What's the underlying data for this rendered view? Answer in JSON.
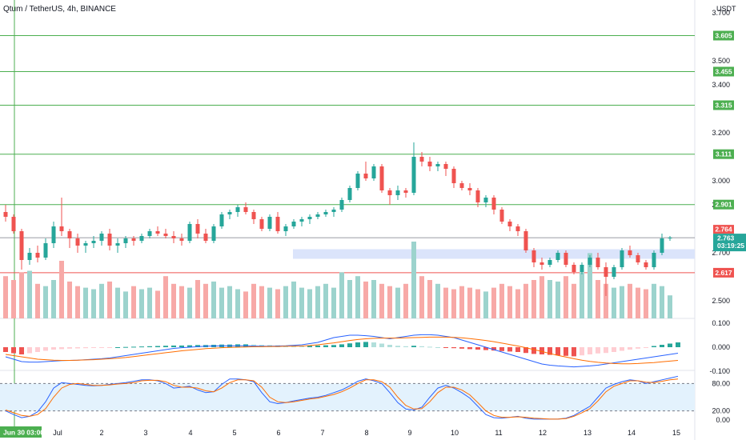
{
  "header": {
    "title": "Qtum / TetherUS, 4h, BINANCE",
    "currency": "USDT"
  },
  "colors": {
    "up": "#26a69a",
    "down": "#ef5350",
    "volUp": "#9cd3cd",
    "volDown": "#f7a9a7",
    "support": "#4caf50",
    "resistance": "#ef5350",
    "zone": "#dbe4fb",
    "macd": "#2962ff",
    "signal": "#ff6d00",
    "stochK": "#2962ff",
    "stochD": "#ff6d00",
    "stochBand": "#e3f2fd"
  },
  "chart_data": {
    "type": "candlestick",
    "title": "Qtum / TetherUS, 4h, BINANCE",
    "y_axis": {
      "unit": "USDT",
      "ticks": [
        "3.700",
        "3.500",
        "3.400",
        "3.200",
        "3.000",
        "2.900",
        "2.700",
        "2.500"
      ],
      "range": [
        2.45,
        3.78
      ]
    },
    "x_axis": {
      "labels": [
        "Jun 30  03:00",
        "Jul",
        "2",
        "3",
        "4",
        "5",
        "6",
        "7",
        "8",
        "9",
        "10",
        "11",
        "12",
        "13",
        "14",
        "15"
      ]
    },
    "horizontal_levels": [
      {
        "price": 3.605,
        "label": "3.605",
        "color": "#4caf50"
      },
      {
        "price": 3.455,
        "label": "3.455",
        "color": "#4caf50"
      },
      {
        "price": 3.315,
        "label": "3.315",
        "color": "#4caf50"
      },
      {
        "price": 3.111,
        "label": "3.111",
        "color": "#4caf50"
      },
      {
        "price": 2.901,
        "label": "2.901",
        "color": "#4caf50"
      },
      {
        "price": 2.617,
        "label": "2.617",
        "color": "#ef5350"
      }
    ],
    "current_price": {
      "value": 2.763,
      "label": "2.763",
      "countdown": "03:19:25",
      "last_label": "2.764"
    },
    "zone": {
      "low": 2.675,
      "high": 2.715
    },
    "candles": [
      [
        2.87,
        2.9,
        2.83,
        2.85
      ],
      [
        2.85,
        2.86,
        2.78,
        2.79
      ],
      [
        2.79,
        2.8,
        2.63,
        2.67
      ],
      [
        2.67,
        2.72,
        2.65,
        2.7
      ],
      [
        2.7,
        2.73,
        2.66,
        2.68
      ],
      [
        2.68,
        2.76,
        2.67,
        2.74
      ],
      [
        2.74,
        2.83,
        2.72,
        2.81
      ],
      [
        2.81,
        2.93,
        2.77,
        2.79
      ],
      [
        2.79,
        2.8,
        2.72,
        2.76
      ],
      [
        2.76,
        2.78,
        2.7,
        2.73
      ],
      [
        2.73,
        2.75,
        2.7,
        2.74
      ],
      [
        2.74,
        2.77,
        2.72,
        2.75
      ],
      [
        2.75,
        2.79,
        2.73,
        2.78
      ],
      [
        2.78,
        2.8,
        2.71,
        2.73
      ],
      [
        2.73,
        2.76,
        2.7,
        2.74
      ],
      [
        2.74,
        2.77,
        2.72,
        2.76
      ],
      [
        2.76,
        2.77,
        2.73,
        2.75
      ],
      [
        2.75,
        2.78,
        2.74,
        2.77
      ],
      [
        2.77,
        2.8,
        2.76,
        2.79
      ],
      [
        2.79,
        2.81,
        2.77,
        2.78
      ],
      [
        2.78,
        2.8,
        2.76,
        2.77
      ],
      [
        2.77,
        2.79,
        2.74,
        2.76
      ],
      [
        2.76,
        2.78,
        2.73,
        2.75
      ],
      [
        2.75,
        2.83,
        2.74,
        2.82
      ],
      [
        2.82,
        2.84,
        2.76,
        2.78
      ],
      [
        2.78,
        2.8,
        2.74,
        2.75
      ],
      [
        2.75,
        2.82,
        2.74,
        2.81
      ],
      [
        2.81,
        2.87,
        2.8,
        2.86
      ],
      [
        2.86,
        2.88,
        2.84,
        2.87
      ],
      [
        2.87,
        2.9,
        2.85,
        2.89
      ],
      [
        2.89,
        2.91,
        2.86,
        2.87
      ],
      [
        2.87,
        2.88,
        2.82,
        2.84
      ],
      [
        2.84,
        2.85,
        2.79,
        2.8
      ],
      [
        2.8,
        2.86,
        2.79,
        2.85
      ],
      [
        2.85,
        2.87,
        2.78,
        2.79
      ],
      [
        2.79,
        2.82,
        2.77,
        2.81
      ],
      [
        2.81,
        2.84,
        2.8,
        2.83
      ],
      [
        2.83,
        2.85,
        2.81,
        2.84
      ],
      [
        2.84,
        2.86,
        2.82,
        2.85
      ],
      [
        2.85,
        2.87,
        2.84,
        2.86
      ],
      [
        2.86,
        2.88,
        2.85,
        2.87
      ],
      [
        2.87,
        2.89,
        2.85,
        2.88
      ],
      [
        2.88,
        2.93,
        2.87,
        2.92
      ],
      [
        2.92,
        2.98,
        2.91,
        2.97
      ],
      [
        2.97,
        3.04,
        2.96,
        3.03
      ],
      [
        3.03,
        3.08,
        3.0,
        3.01
      ],
      [
        3.01,
        3.07,
        3.0,
        3.06
      ],
      [
        3.06,
        3.07,
        2.95,
        2.96
      ],
      [
        2.96,
        2.97,
        2.9,
        2.94
      ],
      [
        2.94,
        2.98,
        2.92,
        2.96
      ],
      [
        2.96,
        2.97,
        2.93,
        2.95
      ],
      [
        2.95,
        3.16,
        2.94,
        3.1
      ],
      [
        3.1,
        3.12,
        3.06,
        3.08
      ],
      [
        3.08,
        3.1,
        3.04,
        3.06
      ],
      [
        3.06,
        3.08,
        3.04,
        3.07
      ],
      [
        3.07,
        3.08,
        3.02,
        3.05
      ],
      [
        3.05,
        3.06,
        2.97,
        2.99
      ],
      [
        2.99,
        3.0,
        2.96,
        2.97
      ],
      [
        2.97,
        2.99,
        2.94,
        2.96
      ],
      [
        2.96,
        2.97,
        2.89,
        2.91
      ],
      [
        2.91,
        2.94,
        2.89,
        2.93
      ],
      [
        2.93,
        2.94,
        2.86,
        2.88
      ],
      [
        2.88,
        2.89,
        2.82,
        2.83
      ],
      [
        2.83,
        2.84,
        2.79,
        2.81
      ],
      [
        2.81,
        2.82,
        2.77,
        2.79
      ],
      [
        2.79,
        2.8,
        2.7,
        2.71
      ],
      [
        2.71,
        2.72,
        2.64,
        2.66
      ],
      [
        2.66,
        2.68,
        2.63,
        2.65
      ],
      [
        2.65,
        2.68,
        2.64,
        2.67
      ],
      [
        2.67,
        2.71,
        2.66,
        2.7
      ],
      [
        2.7,
        2.71,
        2.64,
        2.65
      ],
      [
        2.65,
        2.66,
        2.61,
        2.62
      ],
      [
        2.62,
        2.66,
        2.61,
        2.65
      ],
      [
        2.65,
        2.69,
        2.64,
        2.68
      ],
      [
        2.68,
        2.7,
        2.63,
        2.64
      ],
      [
        2.64,
        2.66,
        2.52,
        2.6
      ],
      [
        2.6,
        2.65,
        2.59,
        2.64
      ],
      [
        2.64,
        2.72,
        2.63,
        2.71
      ],
      [
        2.71,
        2.73,
        2.68,
        2.69
      ],
      [
        2.69,
        2.7,
        2.65,
        2.66
      ],
      [
        2.66,
        2.67,
        2.63,
        2.64
      ],
      [
        2.64,
        2.71,
        2.63,
        2.7
      ],
      [
        2.7,
        2.78,
        2.69,
        2.76
      ],
      [
        2.76,
        2.77,
        2.75,
        2.763
      ]
    ],
    "volume": [
      0.55,
      0.5,
      0.6,
      0.62,
      0.45,
      0.42,
      0.5,
      0.75,
      0.48,
      0.42,
      0.4,
      0.38,
      0.45,
      0.48,
      0.4,
      0.35,
      0.42,
      0.38,
      0.4,
      0.36,
      0.55,
      0.45,
      0.42,
      0.4,
      0.5,
      0.45,
      0.48,
      0.4,
      0.42,
      0.38,
      0.35,
      0.45,
      0.42,
      0.4,
      0.38,
      0.42,
      0.48,
      0.4,
      0.38,
      0.42,
      0.45,
      0.4,
      0.6,
      0.5,
      0.55,
      0.48,
      0.5,
      0.45,
      0.42,
      0.4,
      0.45,
      1.0,
      0.55,
      0.5,
      0.45,
      0.4,
      0.38,
      0.42,
      0.4,
      0.38,
      0.35,
      0.4,
      0.45,
      0.42,
      0.38,
      0.45,
      0.5,
      0.55,
      0.5,
      0.48,
      0.55,
      0.45,
      0.6,
      0.85,
      0.5,
      0.45,
      0.4,
      0.42,
      0.45,
      0.4,
      0.38,
      0.45,
      0.42,
      0.3,
      0.12
    ],
    "macd_panel": {
      "ticks": [
        "0.100",
        "0.000",
        "-0.100"
      ],
      "range": [
        -0.11,
        0.11
      ],
      "histogram": [
        -0.02,
        -0.025,
        -0.03,
        -0.025,
        -0.02,
        -0.015,
        -0.01,
        -0.008,
        -0.006,
        -0.005,
        -0.004,
        -0.003,
        -0.002,
        -0.001,
        0.0,
        0.001,
        0.002,
        0.003,
        0.004,
        0.005,
        0.006,
        0.007,
        0.007,
        0.008,
        0.009,
        0.009,
        0.01,
        0.011,
        0.011,
        0.012,
        0.012,
        0.011,
        0.01,
        0.009,
        0.008,
        0.007,
        0.006,
        0.005,
        0.006,
        0.007,
        0.008,
        0.009,
        0.012,
        0.016,
        0.02,
        0.022,
        0.02,
        0.015,
        0.01,
        0.006,
        0.004,
        0.006,
        0.004,
        0.002,
        0.0,
        -0.002,
        -0.004,
        -0.006,
        -0.008,
        -0.01,
        -0.012,
        -0.014,
        -0.016,
        -0.018,
        -0.02,
        -0.024,
        -0.028,
        -0.03,
        -0.032,
        -0.034,
        -0.036,
        -0.038,
        -0.034,
        -0.03,
        -0.026,
        -0.024,
        -0.02,
        -0.015,
        -0.01,
        -0.006,
        -0.002,
        0.005,
        0.01,
        0.015,
        0.02
      ],
      "macd": [
        -0.04,
        -0.05,
        -0.06,
        -0.062,
        -0.062,
        -0.06,
        -0.058,
        -0.056,
        -0.055,
        -0.054,
        -0.052,
        -0.05,
        -0.048,
        -0.045,
        -0.04,
        -0.035,
        -0.03,
        -0.025,
        -0.02,
        -0.015,
        -0.01,
        -0.005,
        -0.002,
        0.0,
        0.002,
        0.004,
        0.005,
        0.006,
        0.006,
        0.006,
        0.006,
        0.005,
        0.004,
        0.004,
        0.005,
        0.006,
        0.008,
        0.01,
        0.015,
        0.02,
        0.03,
        0.04,
        0.045,
        0.05,
        0.05,
        0.048,
        0.045,
        0.04,
        0.035,
        0.04,
        0.045,
        0.05,
        0.052,
        0.052,
        0.05,
        0.045,
        0.04,
        0.03,
        0.02,
        0.01,
        0.0,
        -0.01,
        -0.02,
        -0.03,
        -0.04,
        -0.05,
        -0.06,
        -0.07,
        -0.075,
        -0.078,
        -0.08,
        -0.082,
        -0.08,
        -0.078,
        -0.075,
        -0.07,
        -0.065,
        -0.06,
        -0.055,
        -0.05,
        -0.045,
        -0.04,
        -0.035,
        -0.03,
        -0.025
      ],
      "signal": [
        -0.03,
        -0.035,
        -0.04,
        -0.045,
        -0.05,
        -0.052,
        -0.054,
        -0.055,
        -0.055,
        -0.054,
        -0.053,
        -0.052,
        -0.05,
        -0.048,
        -0.046,
        -0.043,
        -0.039,
        -0.035,
        -0.031,
        -0.027,
        -0.023,
        -0.019,
        -0.015,
        -0.012,
        -0.009,
        -0.006,
        -0.004,
        -0.002,
        -0.001,
        0.0,
        0.001,
        0.002,
        0.002,
        0.003,
        0.003,
        0.004,
        0.004,
        0.005,
        0.007,
        0.01,
        0.014,
        0.018,
        0.023,
        0.028,
        0.032,
        0.035,
        0.037,
        0.038,
        0.038,
        0.038,
        0.039,
        0.04,
        0.041,
        0.042,
        0.042,
        0.042,
        0.041,
        0.039,
        0.036,
        0.032,
        0.028,
        0.023,
        0.017,
        0.011,
        0.005,
        -0.002,
        -0.01,
        -0.018,
        -0.026,
        -0.034,
        -0.041,
        -0.048,
        -0.054,
        -0.059,
        -0.063,
        -0.066,
        -0.068,
        -0.069,
        -0.069,
        -0.068,
        -0.066,
        -0.064,
        -0.061,
        -0.058,
        -0.055
      ]
    },
    "stoch_panel": {
      "ticks": [
        "80.00",
        "20.00",
        "0.00"
      ],
      "band": [
        20,
        80
      ],
      "k": [
        20,
        12,
        5,
        8,
        18,
        40,
        70,
        82,
        80,
        78,
        76,
        75,
        76,
        78,
        80,
        82,
        85,
        88,
        88,
        86,
        80,
        70,
        72,
        74,
        66,
        60,
        62,
        78,
        90,
        90,
        88,
        84,
        60,
        40,
        36,
        38,
        42,
        45,
        48,
        50,
        54,
        60,
        66,
        75,
        85,
        90,
        86,
        80,
        60,
        38,
        24,
        22,
        28,
        50,
        70,
        76,
        70,
        60,
        48,
        30,
        12,
        5,
        4,
        6,
        8,
        4,
        2,
        2,
        2,
        2,
        4,
        10,
        20,
        30,
        50,
        70,
        78,
        84,
        88,
        86,
        80,
        84,
        88,
        92,
        96
      ],
      "d": [
        22,
        16,
        10,
        8,
        12,
        25,
        50,
        70,
        78,
        80,
        78,
        76,
        76,
        77,
        79,
        80,
        82,
        86,
        87,
        87,
        84,
        76,
        72,
        72,
        70,
        64,
        62,
        70,
        82,
        88,
        88,
        86,
        72,
        50,
        40,
        38,
        40,
        43,
        46,
        48,
        52,
        56,
        62,
        70,
        80,
        88,
        88,
        84,
        72,
        50,
        32,
        24,
        25,
        40,
        60,
        72,
        72,
        66,
        55,
        38,
        20,
        10,
        6,
        6,
        7,
        6,
        4,
        3,
        2,
        2,
        3,
        8,
        16,
        25,
        42,
        62,
        74,
        80,
        86,
        86,
        83,
        82,
        85,
        88,
        90
      ]
    }
  }
}
